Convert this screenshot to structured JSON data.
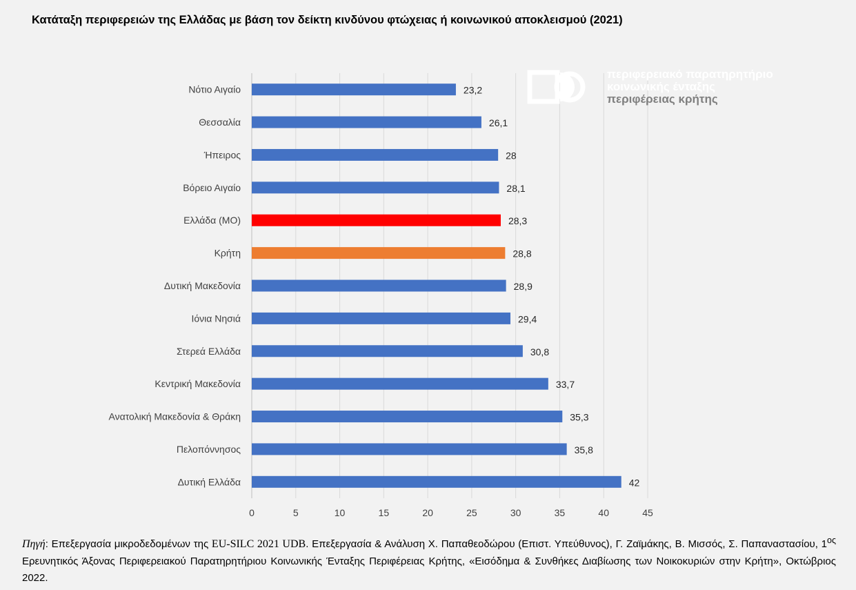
{
  "title": "Κατάταξη περιφερειών της Ελλάδας με βάση τον δείκτη κινδύνου φτώχειας ή κοινωνικού αποκλεισμού (2021)",
  "logo": {
    "line1": "περιφερειακό παρατηρητήριο",
    "line2": "κοινωνικής ένταξης",
    "line3": "περιφέρειας κρήτης"
  },
  "colors": {
    "default_bar": "#4472c4",
    "greece_bar": "#ff0000",
    "crete_bar": "#ed7d31",
    "gridline": "#d9d9d9",
    "axis": "#bfbfbf"
  },
  "chart_data": {
    "type": "bar",
    "orientation": "horizontal",
    "title": "Κατάταξη περιφερειών της Ελλάδας με βάση τον δείκτη κινδύνου φτώχειας ή κοινωνικού αποκλεισμού (2021)",
    "categories": [
      "Νότιο Αιγαίο",
      "Θεσσαλία",
      "Ήπειρος",
      "Βόρειο Αιγαίο",
      "Ελλάδα (ΜΟ)",
      "Κρήτη",
      "Δυτική Μακεδονία",
      "Ιόνια Νησιά",
      "Στερεά Ελλάδα",
      "Κεντρική Μακεδονία",
      "Ανατολική Μακεδονία & Θράκη",
      "Πελοπόννησος",
      "Δυτική Ελλάδα"
    ],
    "values": [
      23.2,
      26.1,
      28,
      28.1,
      28.3,
      28.8,
      28.9,
      29.4,
      30.8,
      33.7,
      35.3,
      35.8,
      42
    ],
    "value_labels": [
      "23,2",
      "26,1",
      "28",
      "28,1",
      "28,3",
      "28,8",
      "28,9",
      "29,4",
      "30,8",
      "33,7",
      "35,3",
      "35,8",
      "42"
    ],
    "bar_colors": [
      "#4472c4",
      "#4472c4",
      "#4472c4",
      "#4472c4",
      "#ff0000",
      "#ed7d31",
      "#4472c4",
      "#4472c4",
      "#4472c4",
      "#4472c4",
      "#4472c4",
      "#4472c4",
      "#4472c4"
    ],
    "xlim": [
      0,
      45
    ],
    "xticks": [
      0,
      5,
      10,
      15,
      20,
      25,
      30,
      35,
      40,
      45
    ],
    "xtick_labels": [
      "0",
      "5",
      "10",
      "15",
      "20",
      "25",
      "30",
      "35",
      "40",
      "45"
    ],
    "grid": true,
    "legend": "none"
  },
  "source": {
    "label": "Πηγή",
    "part1": ": Επεξεργασία μικροδεδομένων της ",
    "dataset": "EU-SILC 2021 UDB",
    "part2": ". Επεξεργασία & Ανάλυση Χ. Παπαθεοδώρου (Επιστ. Υπεύθυνος), Γ. Ζαϊμάκης, Β. Μισσός, Σ. Παπαναστασίου, 1",
    "sup": "ος",
    "part3": " Ερευνητικός Άξονας Περιφερειακού Παρατηρητήριου Κοινωνικής Ένταξης Περιφέρειας Κρήτης, «Εισόδημα & Συνθήκες Διαβίωσης των Νοικοκυριών στην Κρήτη», Οκτώβριος 2022."
  }
}
